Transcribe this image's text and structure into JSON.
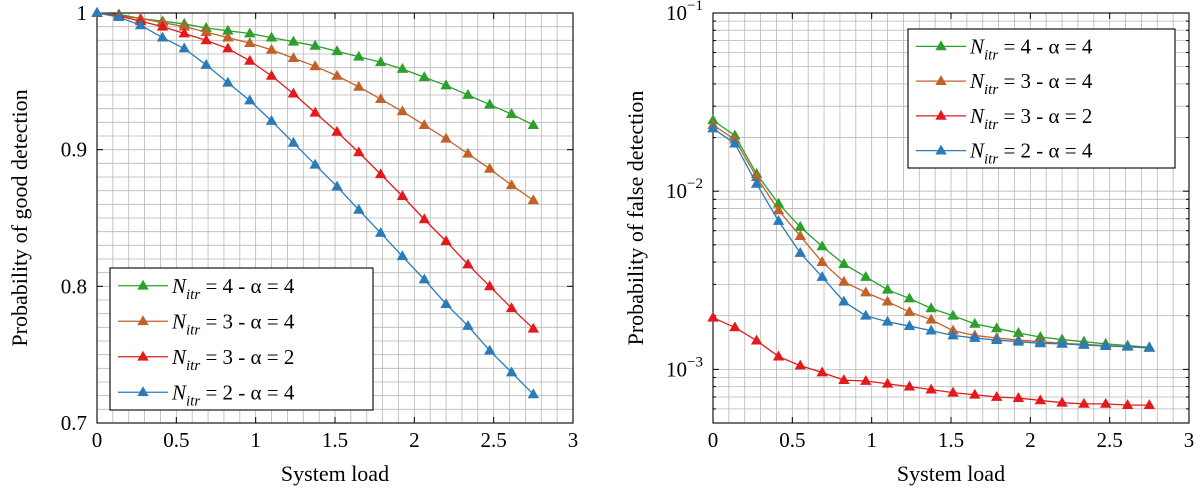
{
  "chart_data": [
    {
      "type": "line",
      "xlabel": "System load",
      "ylabel": "Probability of good detection",
      "xlim": [
        0,
        3
      ],
      "ylim": [
        0.7,
        1
      ],
      "yscale": "linear",
      "xticks": [
        "0",
        "0.5",
        "1",
        "1.5",
        "2",
        "2.5",
        "3"
      ],
      "yticks": [
        "0.7",
        "0.8",
        "0.9",
        "1"
      ],
      "grid": true,
      "legend": "bottom-left",
      "x": [
        0.0,
        0.138,
        0.275,
        0.413,
        0.55,
        0.688,
        0.825,
        0.963,
        1.1,
        1.238,
        1.375,
        1.513,
        1.65,
        1.788,
        1.925,
        2.063,
        2.2,
        2.338,
        2.475,
        2.613,
        2.75
      ],
      "series": [
        {
          "name": "N_itr = 4 - α = 4",
          "label_main": "N",
          "label_sub": "itr",
          "label_rest": " = 4 - α = 4",
          "color": "#2ca02c",
          "values": [
            1.0,
            0.999,
            0.996,
            0.994,
            0.992,
            0.989,
            0.987,
            0.985,
            0.982,
            0.979,
            0.976,
            0.972,
            0.968,
            0.964,
            0.959,
            0.953,
            0.947,
            0.94,
            0.933,
            0.926,
            0.918
          ]
        },
        {
          "name": "N_itr = 3 - α = 4",
          "label_main": "N",
          "label_sub": "itr",
          "label_rest": " = 3 - α = 4",
          "color": "#c1622b",
          "values": [
            1.0,
            0.998,
            0.996,
            0.993,
            0.99,
            0.986,
            0.982,
            0.978,
            0.973,
            0.967,
            0.961,
            0.954,
            0.946,
            0.937,
            0.928,
            0.918,
            0.908,
            0.897,
            0.886,
            0.874,
            0.863
          ]
        },
        {
          "name": "N_itr = 3 - α = 2",
          "label_main": "N",
          "label_sub": "itr",
          "label_rest": " = 3 - α = 2",
          "color": "#e31a1c",
          "values": [
            1.0,
            0.998,
            0.994,
            0.99,
            0.985,
            0.98,
            0.974,
            0.965,
            0.954,
            0.941,
            0.927,
            0.913,
            0.898,
            0.882,
            0.866,
            0.849,
            0.833,
            0.816,
            0.8,
            0.784,
            0.769
          ]
        },
        {
          "name": "N_itr = 2 - α = 4",
          "label_main": "N",
          "label_sub": "itr",
          "label_rest": " = 2 - α = 4",
          "color": "#2b7bb9",
          "values": [
            1.0,
            0.997,
            0.991,
            0.982,
            0.974,
            0.962,
            0.949,
            0.936,
            0.921,
            0.905,
            0.889,
            0.873,
            0.856,
            0.839,
            0.822,
            0.805,
            0.787,
            0.771,
            0.753,
            0.737,
            0.721
          ]
        }
      ]
    },
    {
      "type": "line",
      "xlabel": "System load",
      "ylabel": "Probability of false detection",
      "xlim": [
        0,
        3
      ],
      "ylim": [
        0.0005,
        0.1
      ],
      "yscale": "log",
      "xticks": [
        "0",
        "0.5",
        "1",
        "1.5",
        "2",
        "2.5",
        "3"
      ],
      "yticks_base": "10",
      "yticks_exp": [
        "−3",
        "−2",
        "−1"
      ],
      "grid": true,
      "legend": "top-right",
      "x": [
        0.0,
        0.138,
        0.275,
        0.413,
        0.55,
        0.688,
        0.825,
        0.963,
        1.1,
        1.238,
        1.375,
        1.513,
        1.65,
        1.788,
        1.925,
        2.063,
        2.2,
        2.338,
        2.475,
        2.613,
        2.75
      ],
      "series": [
        {
          "name": "N_itr = 4 - α = 4",
          "label_main": "N",
          "label_sub": "itr",
          "label_rest": " = 4 - α = 4",
          "color": "#2ca02c",
          "values": [
            0.025,
            0.0205,
            0.0125,
            0.0085,
            0.0063,
            0.0049,
            0.0039,
            0.0033,
            0.0028,
            0.0025,
            0.0022,
            0.002,
            0.0018,
            0.0017,
            0.0016,
            0.00152,
            0.00147,
            0.00143,
            0.00139,
            0.00136,
            0.00133
          ]
        },
        {
          "name": "N_itr = 3 - α = 4",
          "label_main": "N",
          "label_sub": "itr",
          "label_rest": " = 3 - α = 4",
          "color": "#c1622b",
          "values": [
            0.0235,
            0.0195,
            0.012,
            0.0078,
            0.0056,
            0.004,
            0.0031,
            0.0027,
            0.0024,
            0.0021,
            0.0019,
            0.00165,
            0.00155,
            0.0015,
            0.00146,
            0.00143,
            0.0014,
            0.00138,
            0.00136,
            0.00134,
            0.00132
          ]
        },
        {
          "name": "N_itr = 3 - α = 2",
          "label_main": "N",
          "label_sub": "itr",
          "label_rest": " = 3 - α = 2",
          "color": "#e31a1c",
          "values": [
            0.00195,
            0.00172,
            0.00145,
            0.00118,
            0.00105,
            0.00096,
            0.00087,
            0.00086,
            0.00083,
            0.0008,
            0.00077,
            0.00074,
            0.00072,
            0.0007,
            0.00069,
            0.00067,
            0.00065,
            0.00064,
            0.00064,
            0.00063,
            0.00063
          ]
        },
        {
          "name": "N_itr = 2 - α = 4",
          "label_main": "N",
          "label_sub": "itr",
          "label_rest": " = 2 - α = 4",
          "color": "#2b7bb9",
          "values": [
            0.0225,
            0.0185,
            0.011,
            0.0068,
            0.0045,
            0.0033,
            0.0024,
            0.002,
            0.00185,
            0.00175,
            0.00165,
            0.00155,
            0.0015,
            0.00146,
            0.00143,
            0.0014,
            0.00139,
            0.00137,
            0.00135,
            0.00134,
            0.00132
          ]
        }
      ]
    }
  ]
}
